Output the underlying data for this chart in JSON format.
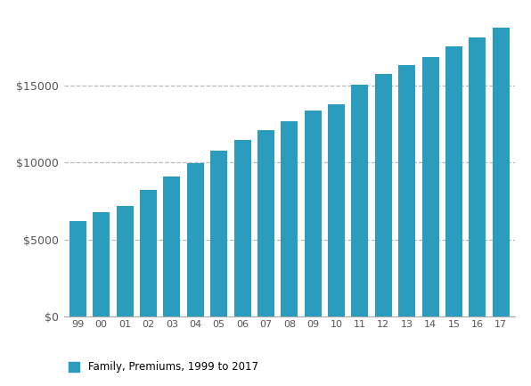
{
  "categories": [
    "99",
    "00",
    "01",
    "02",
    "03",
    "04",
    "05",
    "06",
    "07",
    "08",
    "09",
    "10",
    "11",
    "12",
    "13",
    "14",
    "15",
    "16",
    "17"
  ],
  "values": [
    6200,
    6800,
    7200,
    8200,
    9100,
    9950,
    10750,
    11480,
    12100,
    12700,
    13375,
    13770,
    15073,
    15745,
    16351,
    16834,
    17545,
    18142,
    18764
  ],
  "bar_color": "#2a9dbf",
  "legend_label": "Family, Premiums, 1999 to 2017",
  "legend_color": "#2a9dbf",
  "yticks": [
    0,
    5000,
    10000,
    15000
  ],
  "ytick_labels": [
    "$0",
    "$5000",
    "$10000",
    "$15000"
  ],
  "ylim": [
    0,
    19800
  ],
  "background_color": "#ffffff",
  "grid_color": "#bbbbbb",
  "tick_color": "#555555",
  "bar_width": 0.72,
  "figsize": [
    5.96,
    4.33
  ],
  "dpi": 100
}
